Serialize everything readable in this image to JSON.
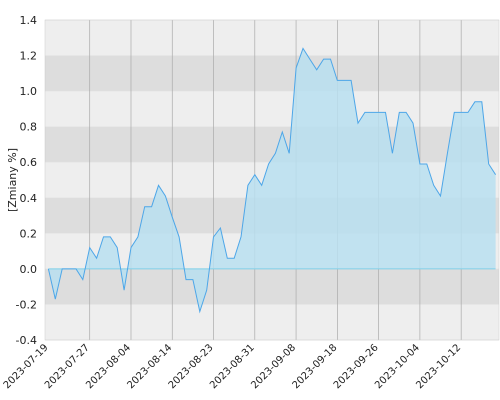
{
  "chart_data": {
    "type": "area",
    "y_label": "[Zmiany %]",
    "categories": [
      "2023-07-19",
      null,
      null,
      null,
      null,
      null,
      "2023-07-27",
      null,
      null,
      null,
      null,
      null,
      "2023-08-04",
      null,
      null,
      null,
      null,
      null,
      "2023-08-14",
      null,
      null,
      null,
      null,
      null,
      "2023-08-23",
      null,
      null,
      null,
      null,
      null,
      "2023-08-31",
      null,
      null,
      null,
      null,
      null,
      "2023-09-08",
      null,
      null,
      null,
      null,
      null,
      "2023-09-18",
      null,
      null,
      null,
      null,
      null,
      "2023-09-26",
      null,
      null,
      null,
      null,
      null,
      "2023-10-04",
      null,
      null,
      null,
      null,
      null,
      "2023-10-12",
      null,
      null,
      null,
      null,
      null
    ],
    "values": [
      0.0,
      -0.17,
      0.0,
      0.0,
      0.0,
      -0.06,
      0.12,
      0.06,
      0.18,
      0.18,
      0.12,
      -0.12,
      0.12,
      0.18,
      0.35,
      0.35,
      0.47,
      0.41,
      0.29,
      0.18,
      -0.06,
      -0.06,
      -0.24,
      -0.12,
      0.18,
      0.23,
      0.06,
      0.06,
      0.18,
      0.47,
      0.53,
      0.47,
      0.59,
      0.65,
      0.77,
      0.65,
      1.13,
      1.24,
      1.18,
      1.12,
      1.18,
      1.18,
      1.06,
      1.06,
      1.06,
      0.82,
      0.88,
      0.88,
      0.88,
      0.88,
      0.65,
      0.88,
      0.88,
      0.82,
      0.59,
      0.59,
      0.47,
      0.41,
      0.65,
      0.88,
      0.88,
      0.88,
      0.94,
      0.94,
      0.59,
      0.53
    ],
    "color": "#4da6e8",
    "fill": "#b8dff0",
    "ylim": [
      -0.4,
      1.4
    ],
    "yticks": [
      -0.4,
      -0.2,
      {
        "value": 0,
        "label": "0.0"
      },
      0.2,
      0.4,
      0.6,
      0.8,
      {
        "value": 1,
        "label": "1.0"
      },
      1.2,
      1.4
    ],
    "grid": true
  }
}
